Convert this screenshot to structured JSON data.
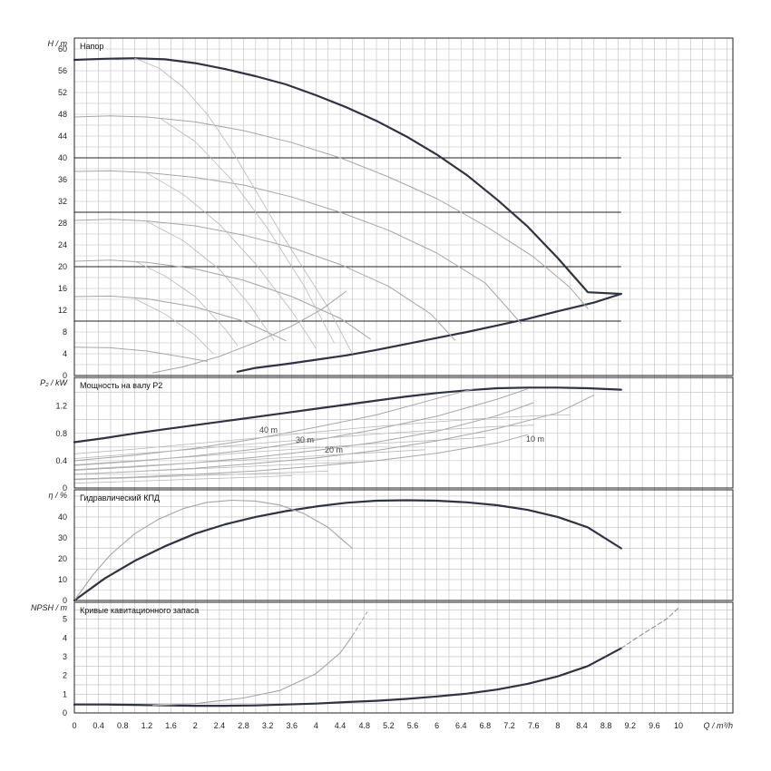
{
  "chart_data": {
    "type": "line",
    "x_axis": {
      "label": "Q / m³/h",
      "range": [
        0,
        10.9
      ],
      "ticks": [
        "0",
        "0.4",
        "0.8",
        "1.2",
        "1.6",
        "2",
        "2.4",
        "2.8",
        "3.2",
        "3.6",
        "4",
        "4.4",
        "4.8",
        "5.2",
        "5.6",
        "6",
        "6.4",
        "6.8",
        "7.2",
        "7.6",
        "8",
        "8.4",
        "8.8",
        "9.2",
        "9.6",
        "10"
      ],
      "grid": true
    },
    "panels": [
      {
        "id": "head",
        "title": "Напор",
        "ylabel": "H / m",
        "ylim": [
          0,
          62
        ],
        "yticks": [
          0,
          4,
          8,
          12,
          16,
          20,
          24,
          28,
          32,
          36,
          40,
          44,
          48,
          52,
          56,
          60
        ],
        "hlines": [
          10,
          20,
          30,
          40
        ],
        "series": [
          {
            "role": "max",
            "x": [
              0,
              0.5,
              1,
              1.5,
              2,
              2.5,
              3,
              3.5,
              4,
              4.5,
              5,
              5.5,
              6,
              6.5,
              7,
              7.5,
              8,
              8.5,
              9.05
            ],
            "y": [
              58,
              58.2,
              58.3,
              58.1,
              57.4,
              56.3,
              55,
              53.5,
              51.5,
              49.3,
              46.8,
              43.9,
              40.6,
              36.8,
              32.3,
              27.4,
              21.6,
              15.3,
              15
            ]
          },
          {
            "role": "max-end",
            "x": [
              9.05,
              8.6,
              8,
              7.5,
              7,
              6.5,
              6,
              5.5,
              5,
              4.5,
              4,
              3.5,
              3,
              2.7
            ],
            "y": [
              15,
              13.4,
              11.8,
              10.4,
              9.2,
              8,
              6.9,
              5.8,
              4.7,
              3.7,
              2.9,
              2.1,
              1.4,
              0.7
            ]
          },
          {
            "role": "speed",
            "x": [
              0,
              0.6,
              1.2,
              2,
              2.8,
              3.6,
              4.4,
              5.2,
              6,
              6.8,
              7.6,
              8.2,
              8.5
            ],
            "y": [
              47.5,
              47.7,
              47.5,
              46.6,
              45,
              42.8,
              40,
              36.5,
              32.5,
              27.5,
              21.8,
              16.2,
              12.3
            ]
          },
          {
            "role": "speed",
            "x": [
              0,
              0.6,
              1.2,
              2,
              2.8,
              3.6,
              4.4,
              5.2,
              6,
              6.8,
              7.4
            ],
            "y": [
              37.5,
              37.6,
              37.3,
              36.4,
              35,
              32.8,
              30,
              26.7,
              22.5,
              17,
              9.5
            ]
          },
          {
            "role": "speed",
            "x": [
              0,
              0.6,
              1.2,
              2,
              2.8,
              3.6,
              4.4,
              5.2,
              5.9,
              6.3
            ],
            "y": [
              28.5,
              28.7,
              28.4,
              27.5,
              25.8,
              23.5,
              20.4,
              16.4,
              11.3,
              6.5
            ]
          },
          {
            "role": "speed",
            "x": [
              0,
              0.6,
              1.2,
              2,
              2.8,
              3.6,
              4.4,
              4.9
            ],
            "y": [
              21,
              21.2,
              20.8,
              19.6,
              17.5,
              14.5,
              10.5,
              6.7
            ]
          },
          {
            "role": "speed",
            "x": [
              0,
              0.6,
              1.2,
              2,
              2.8,
              3.5
            ],
            "y": [
              14.5,
              14.6,
              14.1,
              12.6,
              10,
              6.4
            ]
          },
          {
            "role": "speed",
            "x": [
              0,
              0.6,
              1.2,
              1.8,
              2.2
            ],
            "y": [
              5.2,
              5.1,
              4.5,
              3.4,
              2.6
            ]
          },
          {
            "role": "control",
            "x": [
              1,
              1.4,
              1.8,
              2.2,
              2.6,
              3,
              3.4,
              3.8,
              4.2,
              4.6
            ],
            "y": [
              58.3,
              56.5,
              53,
              48,
              41.5,
              34,
              26.5,
              19.5,
              12.5,
              4
            ]
          },
          {
            "role": "control",
            "x": [
              1.4,
              2,
              2.6,
              3.2,
              3.8,
              4.3
            ],
            "y": [
              47.4,
              43,
              36,
              27,
              16.5,
              6
            ]
          },
          {
            "role": "control",
            "x": [
              1.2,
              1.8,
              2.4,
              3,
              3.6,
              4
            ],
            "y": [
              37.2,
              33.3,
              27.8,
              20.5,
              11.8,
              5
            ]
          },
          {
            "role": "control",
            "x": [
              1.2,
              1.8,
              2.4,
              2.9,
              3.3
            ],
            "y": [
              28.3,
              24.8,
              19.5,
              13,
              6.5
            ]
          },
          {
            "role": "control",
            "x": [
              1,
              1.5,
              2,
              2.5,
              2.7
            ],
            "y": [
              21,
              18.3,
              14.5,
              8.5,
              5.5
            ]
          },
          {
            "role": "control",
            "x": [
              1,
              1.5,
              2,
              2.3
            ],
            "y": [
              14.1,
              11.3,
              7.4,
              4
            ]
          },
          {
            "role": "min",
            "x": [
              1.3,
              1.8,
              2.4,
              3,
              3.6,
              4.1,
              4.5
            ],
            "y": [
              0.5,
              1.6,
              3.5,
              6.1,
              9.1,
              12.2,
              15.5
            ]
          }
        ]
      },
      {
        "id": "power",
        "title": "Мощность на валу P2",
        "ylabel": "P₂ / kW",
        "ylim": [
          0,
          1.62
        ],
        "yticks": [
          "0",
          "0.4",
          "0.8",
          "1.2"
        ],
        "labels": [
          "40 m",
          "30 m",
          "20 m",
          "10 m"
        ],
        "series": [
          {
            "role": "max",
            "x": [
              0,
              0.5,
              1,
              1.5,
              2,
              2.5,
              3,
              3.5,
              4,
              4.5,
              5,
              5.5,
              6,
              6.5,
              7,
              7.5,
              8,
              8.5,
              9.05
            ],
            "y": [
              0.67,
              0.73,
              0.8,
              0.86,
              0.92,
              0.98,
              1.04,
              1.1,
              1.16,
              1.22,
              1.28,
              1.34,
              1.39,
              1.43,
              1.46,
              1.47,
              1.47,
              1.46,
              1.44
            ]
          },
          {
            "role": "speed",
            "x": [
              0,
              1,
              2,
              3,
              4,
              5,
              6,
              6.6
            ],
            "y": [
              0.4,
              0.48,
              0.58,
              0.72,
              0.89,
              1.07,
              1.31,
              1.45
            ]
          },
          {
            "role": "speed",
            "x": [
              0,
              1,
              2,
              3,
              4,
              5,
              6,
              7,
              7.5
            ],
            "y": [
              0.33,
              0.39,
              0.47,
              0.57,
              0.7,
              0.86,
              1.05,
              1.3,
              1.45
            ]
          },
          {
            "role": "speed",
            "x": [
              0,
              1,
              2,
              3,
              4,
              5,
              6,
              7,
              7.6
            ],
            "y": [
              0.26,
              0.31,
              0.37,
              0.45,
              0.55,
              0.67,
              0.83,
              1.06,
              1.25
            ]
          },
          {
            "role": "speed",
            "x": [
              0,
              1,
              2,
              3,
              4,
              5,
              6,
              7,
              8,
              8.6
            ],
            "y": [
              0.2,
              0.24,
              0.29,
              0.36,
              0.44,
              0.55,
              0.69,
              0.87,
              1.1,
              1.36
            ]
          },
          {
            "role": "speed",
            "x": [
              0,
              1,
              2,
              3,
              4,
              5,
              6,
              7,
              7.5
            ],
            "y": [
              0.13,
              0.16,
              0.2,
              0.25,
              0.32,
              0.4,
              0.51,
              0.66,
              0.78
            ]
          },
          {
            "role": "control",
            "x": [
              0,
              1,
              2,
              3,
              4,
              5,
              6,
              7,
              8,
              8.2
            ],
            "y": [
              0.5,
              0.57,
              0.65,
              0.73,
              0.82,
              0.9,
              0.97,
              1.03,
              1.07,
              1.07
            ]
          },
          {
            "role": "control",
            "x": [
              0,
              1,
              2,
              3,
              4,
              5,
              6,
              7,
              7.6
            ],
            "y": [
              0.43,
              0.5,
              0.57,
              0.65,
              0.72,
              0.79,
              0.85,
              0.9,
              0.92
            ]
          },
          {
            "role": "control",
            "x": [
              0,
              1,
              2,
              3,
              4,
              5,
              6,
              6.8
            ],
            "y": [
              0.34,
              0.4,
              0.46,
              0.53,
              0.59,
              0.65,
              0.7,
              0.74
            ]
          },
          {
            "role": "control",
            "x": [
              0,
              1,
              2,
              3,
              4,
              5,
              5.8
            ],
            "y": [
              0.27,
              0.32,
              0.37,
              0.42,
              0.47,
              0.52,
              0.56
            ]
          },
          {
            "role": "control",
            "x": [
              0,
              1,
              2,
              3,
              4,
              4.7
            ],
            "y": [
              0.2,
              0.24,
              0.28,
              0.32,
              0.36,
              0.38
            ]
          },
          {
            "role": "control",
            "x": [
              0,
              1,
              2,
              3,
              4,
              4.2
            ],
            "y": [
              0.12,
              0.15,
              0.18,
              0.21,
              0.24,
              0.25
            ]
          },
          {
            "role": "control",
            "x": [
              0,
              1,
              2,
              3,
              3.6
            ],
            "y": [
              0.07,
              0.1,
              0.13,
              0.16,
              0.18
            ]
          }
        ]
      },
      {
        "id": "efficiency",
        "title": "Гидравлический КПД",
        "ylabel": "η / %",
        "ylim": [
          0,
          53
        ],
        "yticks": [
          0,
          10,
          20,
          30,
          40
        ],
        "series": [
          {
            "role": "max",
            "x": [
              0,
              0.5,
              1,
              1.5,
              2,
              2.5,
              3,
              3.5,
              4,
              4.5,
              5,
              5.5,
              6,
              6.5,
              7,
              7.5,
              8,
              8.5,
              9.05
            ],
            "y": [
              0,
              10.5,
              19,
              26,
              32,
              36.5,
              40,
              42.8,
              45,
              46.8,
              47.8,
              48,
              47.8,
              47,
              45.6,
              43.4,
              40,
              35,
              25
            ]
          },
          {
            "role": "secondary",
            "x": [
              0,
              0.3,
              0.6,
              1,
              1.4,
              1.8,
              2.2,
              2.6,
              3,
              3.4,
              3.8,
              4.2,
              4.6
            ],
            "y": [
              0,
              12,
              22,
              32,
              39,
              44,
              47,
              48,
              47.6,
              45.7,
              41.6,
              35,
              25
            ]
          }
        ]
      },
      {
        "id": "npsh",
        "title": "Кривые кавитационного запаса",
        "ylabel": "NPSH / m",
        "ylim": [
          0,
          5.9
        ],
        "yticks": [
          0,
          1,
          2,
          3,
          4,
          5
        ],
        "series": [
          {
            "role": "max",
            "x": [
              0,
              0.5,
              1,
              1.5,
              2,
              2.5,
              3,
              3.5,
              4,
              4.5,
              5,
              5.5,
              6,
              6.5,
              7,
              7.5,
              8,
              8.5,
              9.05
            ],
            "y": [
              0.45,
              0.45,
              0.43,
              0.4,
              0.38,
              0.38,
              0.4,
              0.45,
              0.5,
              0.58,
              0.65,
              0.75,
              0.88,
              1.03,
              1.25,
              1.55,
              1.95,
              2.5,
              3.45
            ]
          },
          {
            "role": "max-ext",
            "x": [
              9.05,
              9.4,
              9.8,
              10
            ],
            "y": [
              3.45,
              4.2,
              5,
              5.6
            ]
          },
          {
            "role": "secondary",
            "x": [
              1.3,
              2,
              2.8,
              3.4,
              4,
              4.4,
              4.6
            ],
            "y": [
              0.4,
              0.5,
              0.8,
              1.2,
              2.1,
              3.2,
              4.1
            ]
          },
          {
            "role": "secondary-ext",
            "x": [
              4.6,
              4.85
            ],
            "y": [
              4.1,
              5.4
            ]
          }
        ]
      }
    ]
  }
}
